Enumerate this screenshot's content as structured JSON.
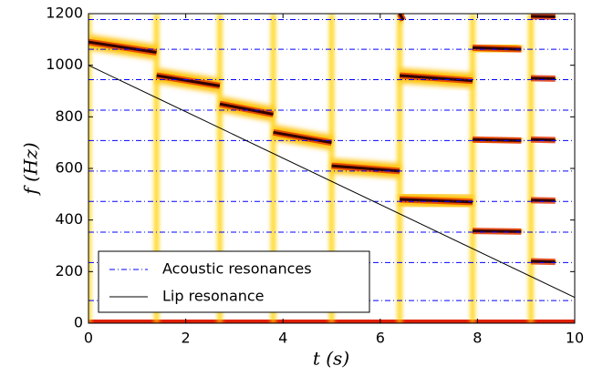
{
  "chart_data": {
    "type": "spectrogram",
    "x_label": "t (s)",
    "y_label": "f (Hz)",
    "xlim": [
      0,
      10
    ],
    "ylim": [
      0,
      1200
    ],
    "xticks": [
      0,
      2,
      4,
      6,
      8,
      10
    ],
    "yticks": [
      0,
      200,
      400,
      600,
      800,
      1000,
      1200
    ],
    "legend": "lower left",
    "series": [
      {
        "name": "Acoustic resonances",
        "color": "#0000ff",
        "values": [
          88,
          235,
          353,
          472,
          590,
          708,
          826,
          944,
          1062,
          1177
        ]
      },
      {
        "name": "Lip resonance",
        "color": "#000000",
        "x": [
          0,
          10
        ],
        "values": [
          1000,
          100
        ]
      }
    ],
    "notes": [
      {
        "t": [
          0,
          1.4
        ],
        "f": [
          1090,
          1050
        ]
      },
      {
        "t": [
          1.4,
          2.7
        ],
        "f": [
          960,
          920
        ]
      },
      {
        "t": [
          2.7,
          3.8
        ],
        "f": [
          850,
          810
        ]
      },
      {
        "t": [
          3.8,
          5.0
        ],
        "f": [
          740,
          700
        ]
      },
      {
        "t": [
          5.0,
          6.4
        ],
        "f": [
          610,
          590
        ]
      },
      {
        "t": [
          6.4,
          7.9
        ],
        "f": [
          480,
          470
        ]
      },
      {
        "t": [
          6.4,
          7.9
        ],
        "f": [
          960,
          940
        ]
      },
      {
        "t": [
          6.4,
          6.4
        ],
        "f": [
          1200,
          1175
        ]
      },
      {
        "t": [
          7.9,
          8.9
        ],
        "f": [
          358,
          355
        ]
      },
      {
        "t": [
          7.9,
          8.9
        ],
        "f": [
          712,
          708
        ]
      },
      {
        "t": [
          7.9,
          8.9
        ],
        "f": [
          1068,
          1062
        ]
      },
      {
        "t": [
          9.1,
          9.6
        ],
        "f": [
          240,
          238
        ]
      },
      {
        "t": [
          9.1,
          9.6
        ],
        "f": [
          477,
          475
        ]
      },
      {
        "t": [
          9.1,
          9.6
        ],
        "f": [
          712,
          710
        ]
      },
      {
        "t": [
          9.1,
          9.6
        ],
        "f": [
          950,
          948
        ]
      },
      {
        "t": [
          9.1,
          9.6
        ],
        "f": [
          1190,
          1188
        ]
      }
    ]
  }
}
